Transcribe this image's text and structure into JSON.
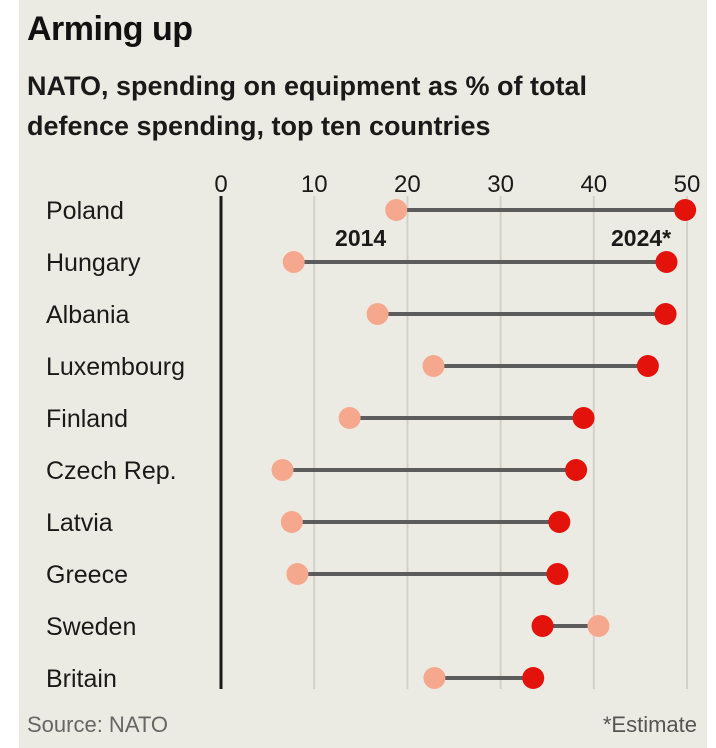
{
  "title": "Arming up",
  "subtitle": "NATO, spending on equipment as % of total defence spending, top ten countries",
  "source": "Source: NATO",
  "footnote": "*Estimate",
  "colors": {
    "background": "#ecebe3",
    "value_2014": "#f5a88e",
    "value_2024": "#e3120b",
    "connector": "#5c5c5c",
    "grid": "#d3d2c9",
    "axis": "#1a1a1a"
  },
  "chart_data": {
    "type": "dot-range",
    "title": "Arming up",
    "subtitle": "NATO, spending on equipment as % of total defence spending, top ten countries",
    "xlim": [
      0,
      50
    ],
    "xticks": [
      0,
      10,
      20,
      30,
      40,
      50
    ],
    "xtick_labels": [
      "0",
      "10",
      "20",
      "30",
      "40",
      "50"
    ],
    "grid": true,
    "series_labels": {
      "start": "2014",
      "end": "2024*"
    },
    "categories": [
      "Poland",
      "Hungary",
      "Albania",
      "Luxembourg",
      "Finland",
      "Czech Rep.",
      "Latvia",
      "Greece",
      "Sweden",
      "Britain"
    ],
    "series": [
      {
        "name": "2014",
        "values": [
          18.8,
          7.8,
          16.8,
          22.8,
          13.8,
          6.6,
          7.6,
          8.2,
          40.5,
          22.9
        ]
      },
      {
        "name": "2024*",
        "values": [
          49.8,
          47.8,
          47.7,
          45.8,
          38.9,
          38.1,
          36.3,
          36.1,
          34.5,
          33.5
        ]
      }
    ]
  }
}
